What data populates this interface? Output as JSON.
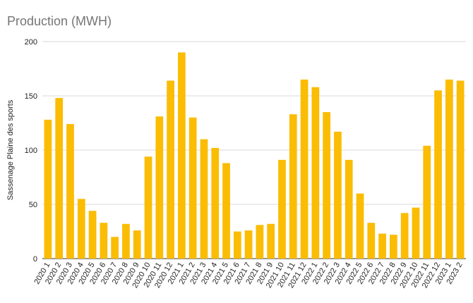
{
  "chart_data": {
    "type": "bar",
    "title": "Production (MWH)",
    "ylabel": "Sassenage Plaine des sports",
    "xlabel": "",
    "ylim": [
      0,
      200
    ],
    "yticks": [
      0,
      50,
      100,
      150,
      200
    ],
    "grid": true,
    "legend": "none",
    "bar_color": "#FBBC04",
    "categories": [
      "2020 1",
      "2020 2",
      "2020 3",
      "2020 4",
      "2020 5",
      "2020 6",
      "2020 7",
      "2020 8",
      "2020 9",
      "2020 10",
      "2020 11",
      "2020 12",
      "2021 1",
      "2021 2",
      "2021 3",
      "2021 4",
      "2021 5",
      "2021 6",
      "2021 7",
      "2021 8",
      "2021 9",
      "2021 10",
      "2021 11",
      "2021 12",
      "2022 1",
      "2022 2",
      "2022 3",
      "2022 4",
      "2022 5",
      "2022 6",
      "2022 7",
      "2022 8",
      "2022 9",
      "2022 10",
      "2022 11",
      "2022 12",
      "2023 1",
      "2023 2"
    ],
    "values": [
      128,
      148,
      124,
      55,
      44,
      33,
      20,
      32,
      26,
      94,
      131,
      164,
      190,
      130,
      110,
      102,
      88,
      25,
      26,
      31,
      32,
      91,
      133,
      165,
      158,
      135,
      117,
      91,
      60,
      33,
      23,
      22,
      42,
      47,
      104,
      155,
      165,
      164
    ]
  }
}
